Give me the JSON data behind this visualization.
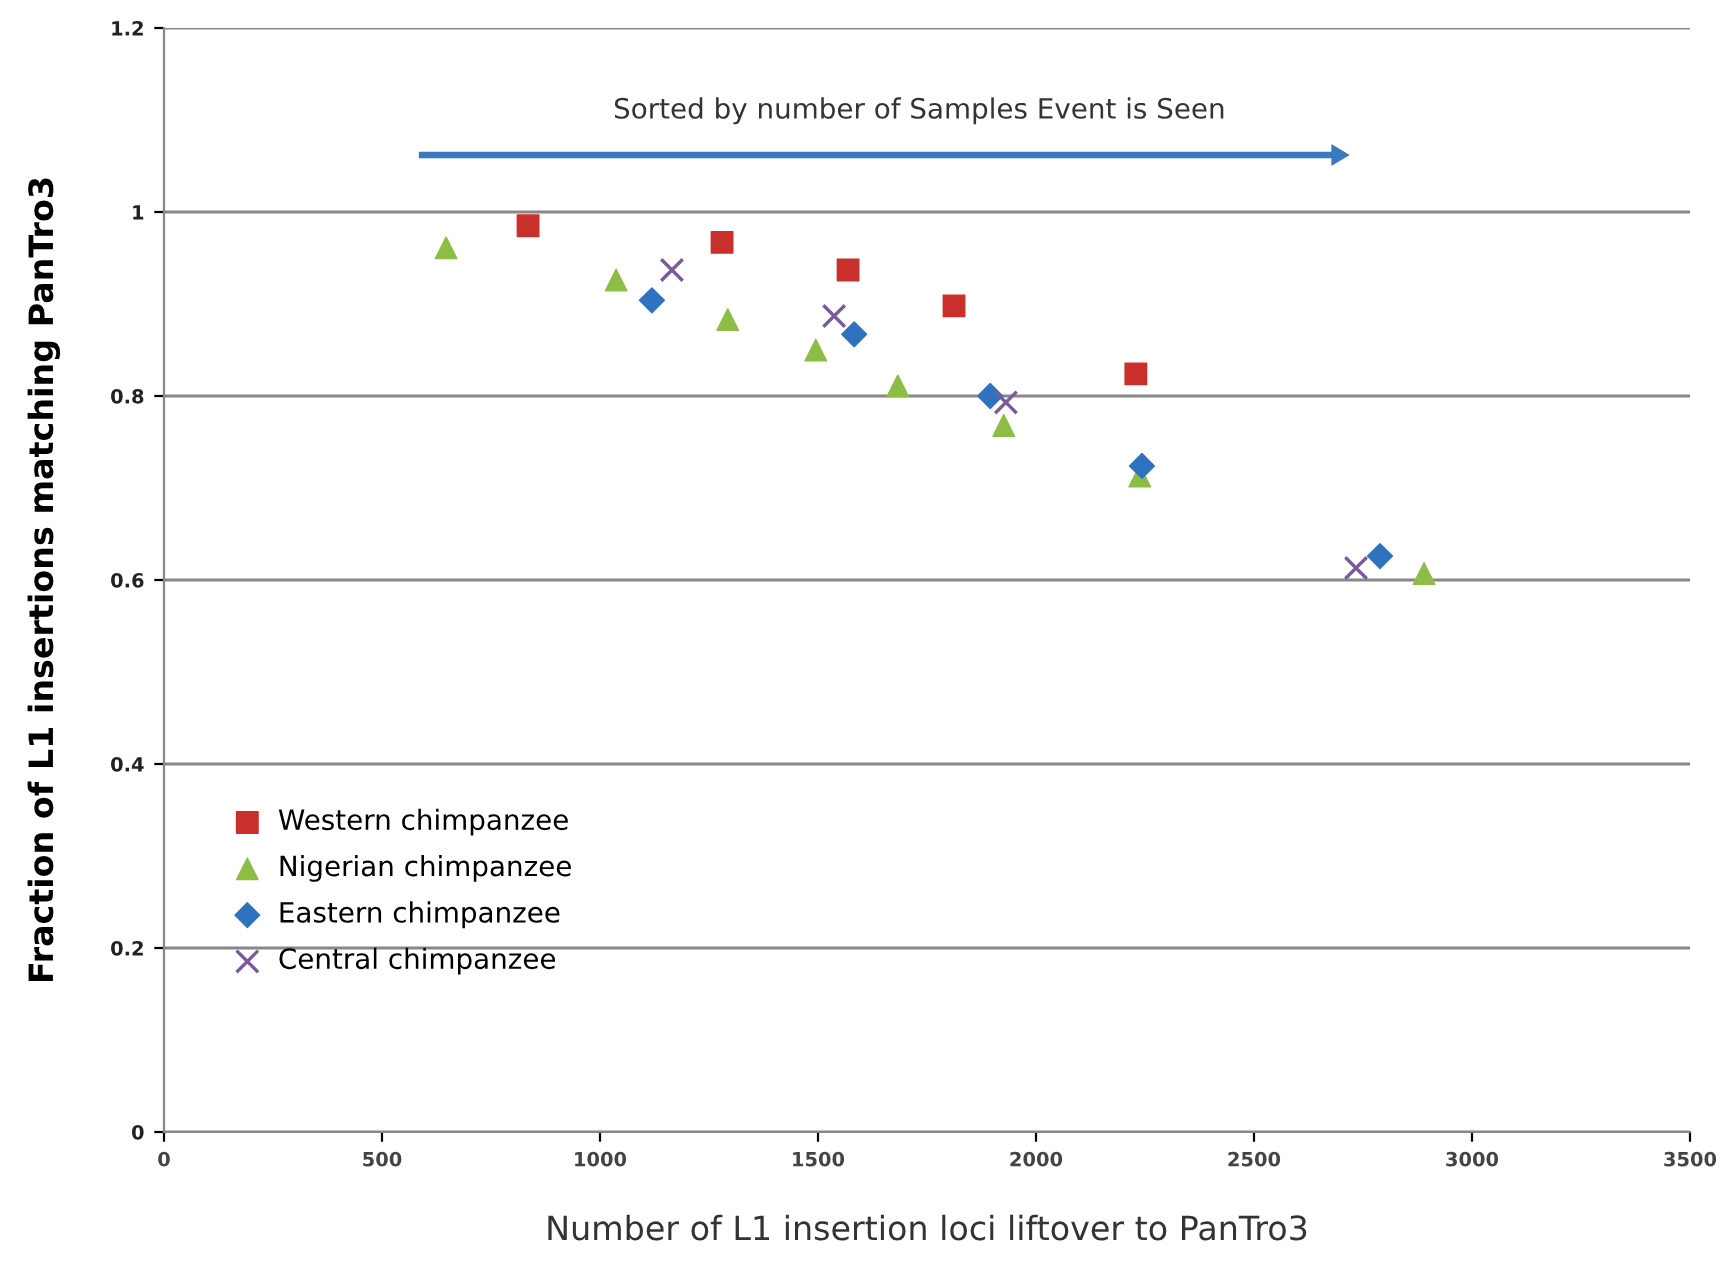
{
  "chart_data": {
    "type": "scatter",
    "xlabel": "Number of L1 insertion loci liftover to PanTro3",
    "ylabel": "Fraction of L1 insertions matching PanTro3",
    "series": [
      {
        "name": "Western chimpanzee",
        "color": "#c9302c",
        "marker": "square",
        "x": [
          835,
          1280,
          1569,
          1812,
          2229
        ],
        "values": [
          0.985,
          0.967,
          0.937,
          0.898,
          0.824
        ]
      },
      {
        "name": "Nigerian chimpanzee",
        "color": "#8cbd45",
        "marker": "triangle",
        "x": [
          647,
          1037,
          1293,
          1495,
          1683,
          1926,
          2238,
          2890
        ],
        "values": [
          0.961,
          0.926,
          0.883,
          0.85,
          0.811,
          0.768,
          0.713,
          0.607
        ]
      },
      {
        "name": "Eastern chimpanzee",
        "color": "#2f72c0",
        "marker": "diamond",
        "x": [
          1119,
          1583,
          1895,
          2243,
          2789
        ],
        "values": [
          0.904,
          0.867,
          0.8,
          0.724,
          0.626
        ]
      },
      {
        "name": "Central chimpanzee",
        "color": "#7a5a9e",
        "marker": "cross",
        "x": [
          1165,
          1537,
          1931,
          2734
        ],
        "values": [
          0.937,
          0.887,
          0.793,
          0.613
        ]
      }
    ],
    "annotations": [
      "Sorted by number of Samples Event is Seen"
    ],
    "xlim": [
      0,
      3500
    ],
    "xticks": [
      0,
      500,
      1000,
      1500,
      2000,
      2500,
      3000,
      3500
    ],
    "ylim": [
      0,
      1.2
    ],
    "yticks": [
      0,
      0.2,
      0.4,
      0.6,
      0.8,
      1,
      1.2
    ],
    "grid": "y",
    "legend": "bottom left"
  }
}
